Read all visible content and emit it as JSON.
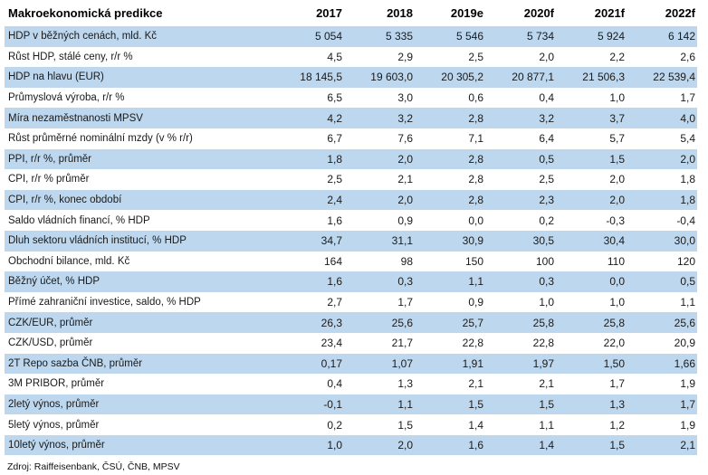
{
  "table": {
    "title": "Makroekonomická predikce",
    "columns": [
      "2017",
      "2018",
      "2019e",
      "2020f",
      "2021f",
      "2022f"
    ],
    "rows": [
      {
        "label": "HDP v běžných cenách, mld. Kč",
        "values": [
          "5 054",
          "5 335",
          "5 546",
          "5 734",
          "5 924",
          "6 142"
        ]
      },
      {
        "label": "Růst HDP, stálé ceny, r/r %",
        "values": [
          "4,5",
          "2,9",
          "2,5",
          "2,0",
          "2,2",
          "2,6"
        ]
      },
      {
        "label": "HDP na hlavu (EUR)",
        "values": [
          "18 145,5",
          "19 603,0",
          "20 305,2",
          "20 877,1",
          "21 506,3",
          "22 539,4"
        ]
      },
      {
        "label": "Průmyslová výroba, r/r %",
        "values": [
          "6,5",
          "3,0",
          "0,6",
          "0,4",
          "1,0",
          "1,7"
        ]
      },
      {
        "label": "Míra nezaměstnanosti MPSV",
        "values": [
          "4,2",
          "3,2",
          "2,8",
          "3,2",
          "3,7",
          "4,0"
        ]
      },
      {
        "label": "Růst průměrné nominální mzdy (v % r/r)",
        "values": [
          "6,7",
          "7,6",
          "7,1",
          "6,4",
          "5,7",
          "5,4"
        ]
      },
      {
        "label": "PPI, r/r %, průměr",
        "values": [
          "1,8",
          "2,0",
          "2,8",
          "0,5",
          "1,5",
          "2,0"
        ]
      },
      {
        "label": "CPI, r/r % průměr",
        "values": [
          "2,5",
          "2,1",
          "2,8",
          "2,5",
          "2,0",
          "1,8"
        ]
      },
      {
        "label": "CPI, r/r %, konec období",
        "values": [
          "2,4",
          "2,0",
          "2,8",
          "2,3",
          "2,0",
          "1,8"
        ]
      },
      {
        "label": "Saldo vládních financí, % HDP",
        "values": [
          "1,6",
          "0,9",
          "0,0",
          "0,2",
          "-0,3",
          "-0,4"
        ]
      },
      {
        "label": "Dluh sektoru vládních institucí, % HDP",
        "values": [
          "34,7",
          "31,1",
          "30,9",
          "30,5",
          "30,4",
          "30,0"
        ]
      },
      {
        "label": "Obchodní bilance, mld. Kč",
        "values": [
          "164",
          "98",
          "150",
          "100",
          "110",
          "120"
        ]
      },
      {
        "label": "Běžný účet, % HDP",
        "values": [
          "1,6",
          "0,3",
          "1,1",
          "0,3",
          "0,0",
          "0,5"
        ]
      },
      {
        "label": "Přímé zahraniční investice, saldo, % HDP",
        "values": [
          "2,7",
          "1,7",
          "0,9",
          "1,0",
          "1,0",
          "1,1"
        ]
      },
      {
        "label": "CZK/EUR, průměr",
        "values": [
          "26,3",
          "25,6",
          "25,7",
          "25,8",
          "25,8",
          "25,6"
        ]
      },
      {
        "label": "CZK/USD, průměr",
        "values": [
          "23,4",
          "21,7",
          "22,8",
          "22,8",
          "22,0",
          "20,9"
        ]
      },
      {
        "label": "2T Repo sazba ČNB, průměr",
        "values": [
          "0,17",
          "1,07",
          "1,91",
          "1,97",
          "1,50",
          "1,66"
        ]
      },
      {
        "label": "3M PRIBOR, průměr",
        "values": [
          "0,4",
          "1,3",
          "2,1",
          "2,1",
          "1,7",
          "1,9"
        ]
      },
      {
        "label": "2letý výnos, průměr",
        "values": [
          "-0,1",
          "1,1",
          "1,5",
          "1,5",
          "1,3",
          "1,7"
        ]
      },
      {
        "label": "5letý výnos, průměr",
        "values": [
          "0,2",
          "1,5",
          "1,4",
          "1,1",
          "1,2",
          "1,9"
        ]
      },
      {
        "label": "10letý výnos, průměr",
        "values": [
          "1,0",
          "2,0",
          "1,6",
          "1,4",
          "1,5",
          "2,1"
        ]
      }
    ],
    "source": "Zdroj: Raiffeisenbank, ČSÚ, ČNB, MPSV",
    "colors": {
      "row_shading": "#bdd7ee",
      "text": "#1a1a1a",
      "background": "#ffffff"
    }
  },
  "chart_data": {
    "type": "table",
    "title": "Makroekonomická predikce",
    "categories": [
      "2017",
      "2018",
      "2019e",
      "2020f",
      "2021f",
      "2022f"
    ],
    "series": [
      {
        "name": "HDP v běžných cenách, mld. Kč",
        "values": [
          5054,
          5335,
          5546,
          5734,
          5924,
          6142
        ]
      },
      {
        "name": "Růst HDP, stálé ceny, r/r %",
        "values": [
          4.5,
          2.9,
          2.5,
          2.0,
          2.2,
          2.6
        ]
      },
      {
        "name": "HDP na hlavu (EUR)",
        "values": [
          18145.5,
          19603.0,
          20305.2,
          20877.1,
          21506.3,
          22539.4
        ]
      },
      {
        "name": "Průmyslová výroba, r/r %",
        "values": [
          6.5,
          3.0,
          0.6,
          0.4,
          1.0,
          1.7
        ]
      },
      {
        "name": "Míra nezaměstnanosti MPSV",
        "values": [
          4.2,
          3.2,
          2.8,
          3.2,
          3.7,
          4.0
        ]
      },
      {
        "name": "Růst průměrné nominální mzdy (v % r/r)",
        "values": [
          6.7,
          7.6,
          7.1,
          6.4,
          5.7,
          5.4
        ]
      },
      {
        "name": "PPI, r/r %, průměr",
        "values": [
          1.8,
          2.0,
          2.8,
          0.5,
          1.5,
          2.0
        ]
      },
      {
        "name": "CPI, r/r % průměr",
        "values": [
          2.5,
          2.1,
          2.8,
          2.5,
          2.0,
          1.8
        ]
      },
      {
        "name": "CPI, r/r %, konec období",
        "values": [
          2.4,
          2.0,
          2.8,
          2.3,
          2.0,
          1.8
        ]
      },
      {
        "name": "Saldo vládních financí, % HDP",
        "values": [
          1.6,
          0.9,
          0.0,
          0.2,
          -0.3,
          -0.4
        ]
      },
      {
        "name": "Dluh sektoru vládních institucí, % HDP",
        "values": [
          34.7,
          31.1,
          30.9,
          30.5,
          30.4,
          30.0
        ]
      },
      {
        "name": "Obchodní bilance, mld. Kč",
        "values": [
          164,
          98,
          150,
          100,
          110,
          120
        ]
      },
      {
        "name": "Běžný účet, % HDP",
        "values": [
          1.6,
          0.3,
          1.1,
          0.3,
          0.0,
          0.5
        ]
      },
      {
        "name": "Přímé zahraniční investice, saldo, % HDP",
        "values": [
          2.7,
          1.7,
          0.9,
          1.0,
          1.0,
          1.1
        ]
      },
      {
        "name": "CZK/EUR, průměr",
        "values": [
          26.3,
          25.6,
          25.7,
          25.8,
          25.8,
          25.6
        ]
      },
      {
        "name": "CZK/USD, průměr",
        "values": [
          23.4,
          21.7,
          22.8,
          22.8,
          22.0,
          20.9
        ]
      },
      {
        "name": "2T Repo sazba ČNB, průměr",
        "values": [
          0.17,
          1.07,
          1.91,
          1.97,
          1.5,
          1.66
        ]
      },
      {
        "name": "3M PRIBOR, průměr",
        "values": [
          0.4,
          1.3,
          2.1,
          2.1,
          1.7,
          1.9
        ]
      },
      {
        "name": "2letý výnos, průměr",
        "values": [
          -0.1,
          1.1,
          1.5,
          1.5,
          1.3,
          1.7
        ]
      },
      {
        "name": "5letý výnos, průměr",
        "values": [
          0.2,
          1.5,
          1.4,
          1.1,
          1.2,
          1.9
        ]
      },
      {
        "name": "10letý výnos, průměr",
        "values": [
          1.0,
          2.0,
          1.6,
          1.4,
          1.5,
          2.1
        ]
      }
    ],
    "notes": "Alternating light-blue row shading starting with first data row; values right-aligned; Czech decimal commas and space thousands separators; e = estimate, f = forecast",
    "source": "Zdroj: Raiffeisenbank, ČSÚ, ČNB, MPSV"
  }
}
